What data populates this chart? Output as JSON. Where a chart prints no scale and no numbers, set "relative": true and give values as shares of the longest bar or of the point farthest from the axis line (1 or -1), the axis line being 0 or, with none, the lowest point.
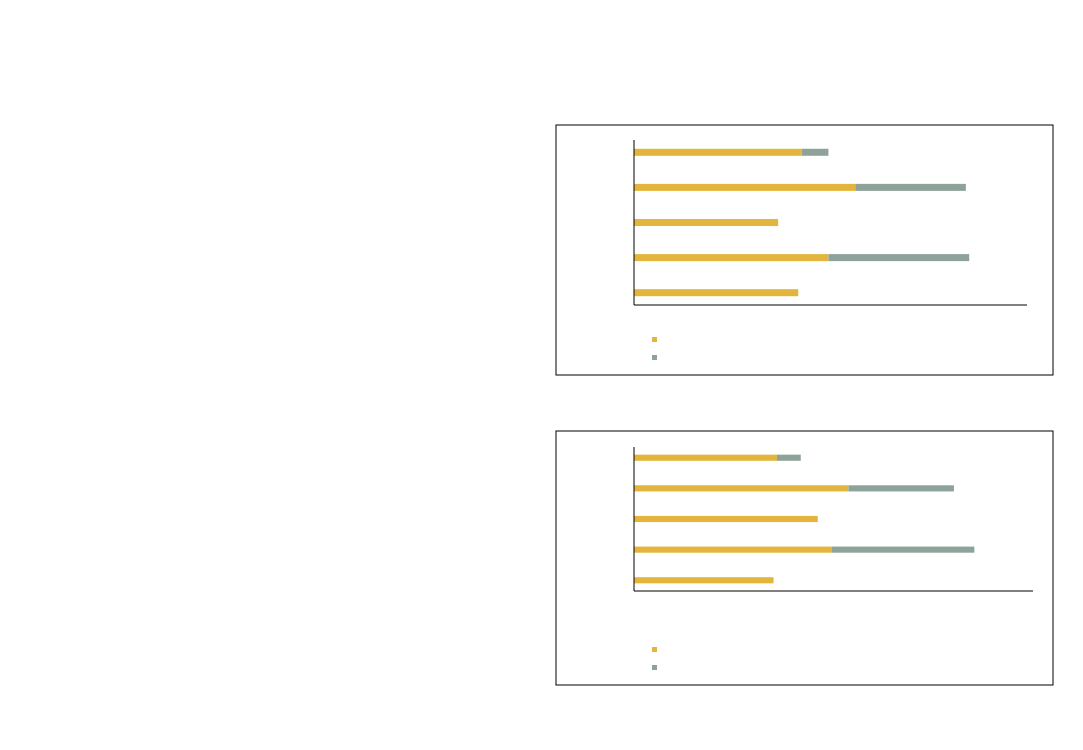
{
  "chart_data": [
    {
      "type": "bar",
      "orientation": "horizontal",
      "stacked": true,
      "relative": true,
      "categories": [
        null,
        null,
        null,
        null,
        null
      ],
      "series": [
        {
          "color": "#e3b53c",
          "values": [
            0.5,
            0.66,
            0.43,
            0.58,
            0.49
          ]
        },
        {
          "color": "#8da399",
          "values": [
            0.08,
            0.33,
            null,
            0.42,
            null
          ]
        }
      ]
    },
    {
      "type": "bar",
      "orientation": "horizontal",
      "stacked": true,
      "relative": true,
      "categories": [
        null,
        null,
        null,
        null,
        null
      ],
      "series": [
        {
          "color": "#e3b53c",
          "values": [
            0.42,
            0.63,
            0.54,
            0.58,
            0.41
          ]
        },
        {
          "color": "#8da399",
          "values": [
            0.07,
            0.31,
            null,
            0.42,
            null
          ]
        }
      ]
    }
  ]
}
